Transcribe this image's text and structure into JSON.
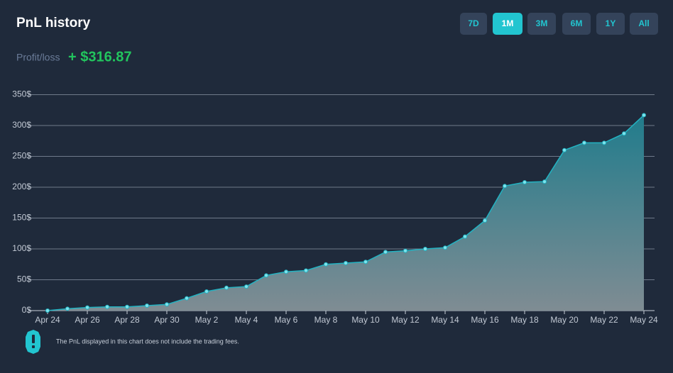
{
  "header": {
    "title": "PnL history",
    "ranges": [
      "7D",
      "1M",
      "3M",
      "6M",
      "1Y",
      "All"
    ],
    "active_range": "1M",
    "profit_label": "Profit/loss",
    "profit_value": "+ $316.87"
  },
  "chart_data": {
    "type": "area",
    "categories": [
      "Apr 24",
      null,
      "Apr 26",
      null,
      "Apr 28",
      null,
      "Apr 30",
      null,
      "May 2",
      null,
      "May 4",
      null,
      "May 6",
      null,
      "May 8",
      null,
      "May 10",
      null,
      "May 12",
      null,
      "May 14",
      null,
      "May 16",
      null,
      "May 18",
      null,
      "May 20",
      null,
      "May 22",
      null,
      "May 24"
    ],
    "values": [
      0,
      3,
      5,
      6,
      6,
      8,
      10,
      20,
      31,
      37,
      39,
      57,
      63,
      65,
      75,
      77,
      79,
      95,
      97,
      100,
      102,
      120,
      146,
      202,
      208,
      209,
      260,
      272,
      272,
      287,
      316.87
    ],
    "color": "#22b3c2",
    "ylim": [
      0,
      350
    ],
    "yticks": [
      {
        "value": 0,
        "label": "0$"
      },
      {
        "value": 50,
        "label": "50$"
      },
      {
        "value": 100,
        "label": "100$"
      },
      {
        "value": 150,
        "label": "150$"
      },
      {
        "value": 200,
        "label": "200$"
      },
      {
        "value": 250,
        "label": "250$"
      },
      {
        "value": 300,
        "label": "300$"
      },
      {
        "value": 350,
        "label": "350$"
      }
    ],
    "grid": true
  },
  "footnote": "The PnL displayed in this chart does not include the trading fees."
}
